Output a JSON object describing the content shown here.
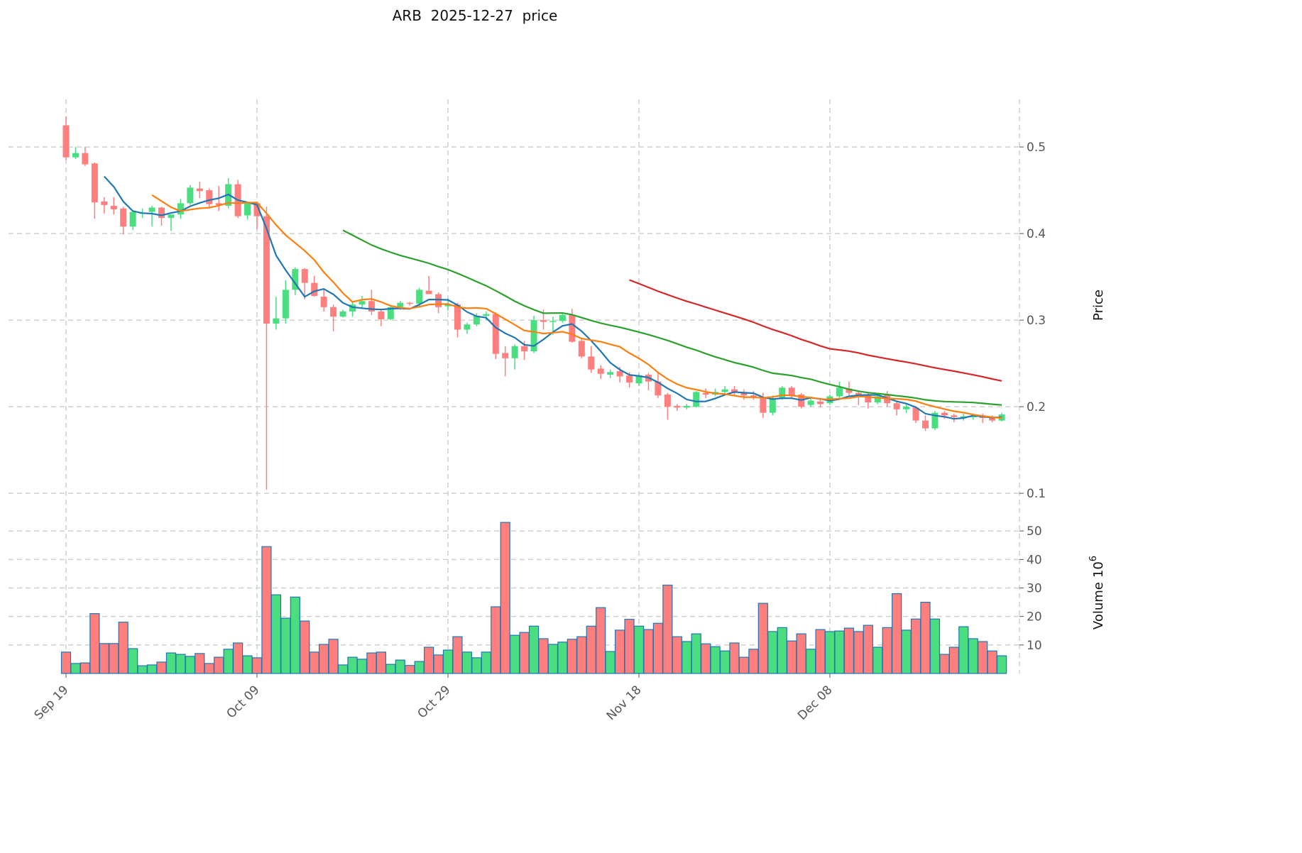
{
  "chart_data": {
    "type": "candlestick",
    "title": "ARB  2025-12-27  price",
    "ylabel_price": "Price",
    "ylabel_volume": "Volume",
    "volume_exponent": "10",
    "volume_exponent_power": "6",
    "x_ticks": [
      "Sep 19",
      "Oct 09",
      "Oct 29",
      "Nov 18",
      "Dec 08"
    ],
    "x_tick_index": [
      0,
      20,
      40,
      60,
      80
    ],
    "price_ticks": [
      0.1,
      0.2,
      0.3,
      0.4,
      0.5
    ],
    "price_tick_labels": [
      "0.1",
      "0.2",
      "0.3",
      "0.4",
      "0.5"
    ],
    "price_ylim": [
      0.096,
      0.555
    ],
    "volume_ticks": [
      10,
      20,
      30,
      40,
      50
    ],
    "volume_tick_labels": [
      "10",
      "20",
      "30",
      "40",
      "50"
    ],
    "volume_ylim": [
      0,
      62
    ],
    "grid": true,
    "colors": {
      "up": "#4ade80",
      "down": "#ff7f7f",
      "volume_edge": "#1f77b4",
      "ma5": "#1f77b4",
      "ma10": "#ff7f0e",
      "ma30": "#2ca02c",
      "ma60": "#d62728"
    },
    "moving_averages": [
      5,
      10,
      30,
      60
    ],
    "ohlc": [
      [
        0.525,
        0.535,
        0.485,
        0.488
      ],
      [
        0.488,
        0.5,
        0.486,
        0.493
      ],
      [
        0.493,
        0.5,
        0.478,
        0.48
      ],
      [
        0.481,
        0.482,
        0.417,
        0.436
      ],
      [
        0.437,
        0.442,
        0.423,
        0.433
      ],
      [
        0.432,
        0.442,
        0.422,
        0.428
      ],
      [
        0.429,
        0.431,
        0.399,
        0.408
      ],
      [
        0.408,
        0.426,
        0.404,
        0.425
      ],
      [
        0.424,
        0.429,
        0.418,
        0.424
      ],
      [
        0.425,
        0.432,
        0.408,
        0.43
      ],
      [
        0.43,
        0.431,
        0.409,
        0.418
      ],
      [
        0.418,
        0.422,
        0.403,
        0.422
      ],
      [
        0.422,
        0.44,
        0.417,
        0.435
      ],
      [
        0.435,
        0.456,
        0.433,
        0.453
      ],
      [
        0.452,
        0.46,
        0.441,
        0.449
      ],
      [
        0.45,
        0.452,
        0.429,
        0.434
      ],
      [
        0.435,
        0.455,
        0.426,
        0.433
      ],
      [
        0.432,
        0.464,
        0.429,
        0.457
      ],
      [
        0.457,
        0.462,
        0.418,
        0.42
      ],
      [
        0.421,
        0.437,
        0.416,
        0.436
      ],
      [
        0.435,
        0.436,
        0.405,
        0.42
      ],
      [
        0.42,
        0.431,
        0.104,
        0.296
      ],
      [
        0.296,
        0.327,
        0.289,
        0.302
      ],
      [
        0.302,
        0.346,
        0.296,
        0.335
      ],
      [
        0.335,
        0.361,
        0.329,
        0.359
      ],
      [
        0.359,
        0.36,
        0.324,
        0.343
      ],
      [
        0.343,
        0.351,
        0.327,
        0.328
      ],
      [
        0.327,
        0.335,
        0.31,
        0.315
      ],
      [
        0.315,
        0.318,
        0.287,
        0.304
      ],
      [
        0.304,
        0.312,
        0.303,
        0.31
      ],
      [
        0.31,
        0.321,
        0.304,
        0.318
      ],
      [
        0.318,
        0.328,
        0.313,
        0.322
      ],
      [
        0.322,
        0.335,
        0.306,
        0.31
      ],
      [
        0.31,
        0.313,
        0.293,
        0.301
      ],
      [
        0.301,
        0.316,
        0.3,
        0.315
      ],
      [
        0.315,
        0.322,
        0.312,
        0.32
      ],
      [
        0.32,
        0.321,
        0.317,
        0.319
      ],
      [
        0.319,
        0.337,
        0.315,
        0.335
      ],
      [
        0.334,
        0.351,
        0.33,
        0.33
      ],
      [
        0.33,
        0.332,
        0.308,
        0.315
      ],
      [
        0.316,
        0.325,
        0.311,
        0.318
      ],
      [
        0.318,
        0.32,
        0.28,
        0.289
      ],
      [
        0.289,
        0.297,
        0.284,
        0.295
      ],
      [
        0.295,
        0.308,
        0.293,
        0.305
      ],
      [
        0.305,
        0.31,
        0.3,
        0.307
      ],
      [
        0.307,
        0.309,
        0.255,
        0.261
      ],
      [
        0.262,
        0.27,
        0.235,
        0.256
      ],
      [
        0.256,
        0.272,
        0.243,
        0.27
      ],
      [
        0.27,
        0.276,
        0.254,
        0.264
      ],
      [
        0.264,
        0.305,
        0.262,
        0.3
      ],
      [
        0.3,
        0.312,
        0.289,
        0.298
      ],
      [
        0.298,
        0.304,
        0.283,
        0.299
      ],
      [
        0.299,
        0.309,
        0.297,
        0.306
      ],
      [
        0.306,
        0.313,
        0.274,
        0.275
      ],
      [
        0.276,
        0.278,
        0.256,
        0.258
      ],
      [
        0.258,
        0.27,
        0.239,
        0.243
      ],
      [
        0.244,
        0.248,
        0.232,
        0.238
      ],
      [
        0.237,
        0.243,
        0.233,
        0.24
      ],
      [
        0.241,
        0.246,
        0.228,
        0.235
      ],
      [
        0.236,
        0.24,
        0.222,
        0.228
      ],
      [
        0.227,
        0.238,
        0.224,
        0.236
      ],
      [
        0.237,
        0.239,
        0.219,
        0.229
      ],
      [
        0.229,
        0.24,
        0.21,
        0.213
      ],
      [
        0.214,
        0.216,
        0.185,
        0.2
      ],
      [
        0.201,
        0.203,
        0.195,
        0.199
      ],
      [
        0.199,
        0.203,
        0.197,
        0.201
      ],
      [
        0.2,
        0.218,
        0.199,
        0.217
      ],
      [
        0.216,
        0.221,
        0.21,
        0.214
      ],
      [
        0.214,
        0.221,
        0.212,
        0.217
      ],
      [
        0.217,
        0.224,
        0.214,
        0.22
      ],
      [
        0.22,
        0.224,
        0.213,
        0.217
      ],
      [
        0.217,
        0.22,
        0.208,
        0.213
      ],
      [
        0.213,
        0.218,
        0.208,
        0.211
      ],
      [
        0.211,
        0.216,
        0.187,
        0.193
      ],
      [
        0.193,
        0.213,
        0.19,
        0.21
      ],
      [
        0.21,
        0.224,
        0.208,
        0.222
      ],
      [
        0.222,
        0.224,
        0.21,
        0.213
      ],
      [
        0.214,
        0.216,
        0.198,
        0.2
      ],
      [
        0.202,
        0.21,
        0.2,
        0.207
      ],
      [
        0.206,
        0.21,
        0.199,
        0.203
      ],
      [
        0.204,
        0.214,
        0.202,
        0.212
      ],
      [
        0.212,
        0.229,
        0.21,
        0.222
      ],
      [
        0.221,
        0.229,
        0.213,
        0.216
      ],
      [
        0.216,
        0.219,
        0.202,
        0.213
      ],
      [
        0.213,
        0.216,
        0.198,
        0.205
      ],
      [
        0.205,
        0.214,
        0.203,
        0.212
      ],
      [
        0.214,
        0.218,
        0.2,
        0.204
      ],
      [
        0.204,
        0.207,
        0.19,
        0.197
      ],
      [
        0.197,
        0.203,
        0.193,
        0.2
      ],
      [
        0.199,
        0.2,
        0.181,
        0.184
      ],
      [
        0.184,
        0.19,
        0.172,
        0.175
      ],
      [
        0.175,
        0.195,
        0.173,
        0.193
      ],
      [
        0.193,
        0.195,
        0.186,
        0.19
      ],
      [
        0.19,
        0.192,
        0.182,
        0.188
      ],
      [
        0.187,
        0.192,
        0.184,
        0.189
      ],
      [
        0.189,
        0.191,
        0.185,
        0.189
      ],
      [
        0.19,
        0.192,
        0.181,
        0.187
      ],
      [
        0.188,
        0.19,
        0.182,
        0.184
      ],
      [
        0.184,
        0.193,
        0.183,
        0.191
      ]
    ],
    "volume": [
      7.5,
      3.5,
      3.7,
      21,
      10.5,
      10.5,
      18,
      8.7,
      2.7,
      3,
      4,
      7.2,
      6.7,
      6,
      7,
      3.5,
      5.7,
      8.5,
      10.7,
      6.2,
      5.5,
      44.5,
      27.6,
      19.4,
      26.8,
      18.4,
      7.5,
      10.2,
      12,
      3,
      5.7,
      5,
      7.2,
      7.5,
      3.2,
      4.7,
      2.8,
      4.2,
      9.2,
      6.5,
      8.2,
      12.9,
      7.5,
      5.5,
      7.5,
      23.4,
      53,
      13.4,
      14.4,
      16.6,
      12.2,
      10.2,
      11,
      12,
      12.9,
      16.6,
      23.1,
      7.7,
      15.2,
      19,
      16.6,
      15.4,
      17.6,
      31,
      12.9,
      11.2,
      13.9,
      10.4,
      9.4,
      7.9,
      10.7,
      5.7,
      8.5,
      24.6,
      14.7,
      16.1,
      11.4,
      13.9,
      8.5,
      15.4,
      14.7,
      14.9,
      15.9,
      14.7,
      16.9,
      9.2,
      16.1,
      28,
      15.2,
      19.1,
      25,
      19.1,
      6.7,
      9.2,
      16.4,
      12.2,
      11.2,
      7.9,
      6.2
    ]
  }
}
